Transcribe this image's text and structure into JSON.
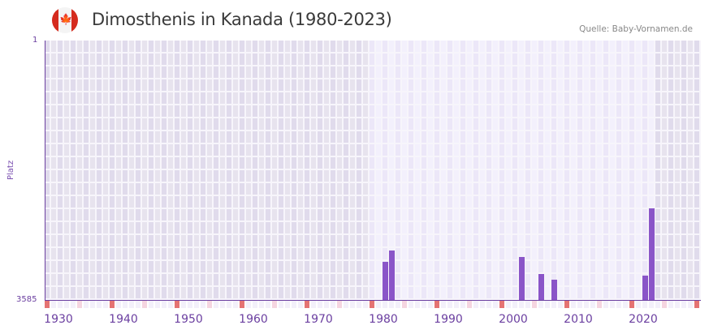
{
  "header": {
    "title": "Dimosthenis in Kanada (1980-2023)",
    "source": "Quelle: Baby-Vornamen.de",
    "flag_icon": "canada-flag-icon"
  },
  "chart_data": {
    "type": "bar",
    "title": "Dimosthenis in Kanada (1980-2023)",
    "xlabel": "",
    "ylabel": "Platz",
    "ylim": [
      3585,
      1
    ],
    "y_inverted": true,
    "y_ticks": [
      "1",
      "3585"
    ],
    "x_ticks": [
      "1930",
      "1940",
      "1950",
      "1960",
      "1970",
      "1980",
      "1990",
      "2000",
      "2010",
      "2020"
    ],
    "data_range": [
      1980,
      2023
    ],
    "grid": true,
    "categories": [
      "1982",
      "1983",
      "2003",
      "2006",
      "2008",
      "2022",
      "2023"
    ],
    "values": [
      3058,
      2902,
      2991,
      3227,
      3305,
      3249,
      2319
    ]
  },
  "axis": {
    "y_top": "1",
    "y_bottom": "3585",
    "y_title": "Platz",
    "x_labels": [
      "1930",
      "1940",
      "1950",
      "1960",
      "1970",
      "1980",
      "1990",
      "2000",
      "2010",
      "2020"
    ]
  },
  "colors": {
    "bar": "#8a55c8",
    "axis": "#6b3fa0",
    "out_of_range_bg": "#e2ddee",
    "in_range_bg": "#efebfb",
    "decade_marker": "#e57373",
    "half_decade_marker": "#f5d5e0"
  }
}
